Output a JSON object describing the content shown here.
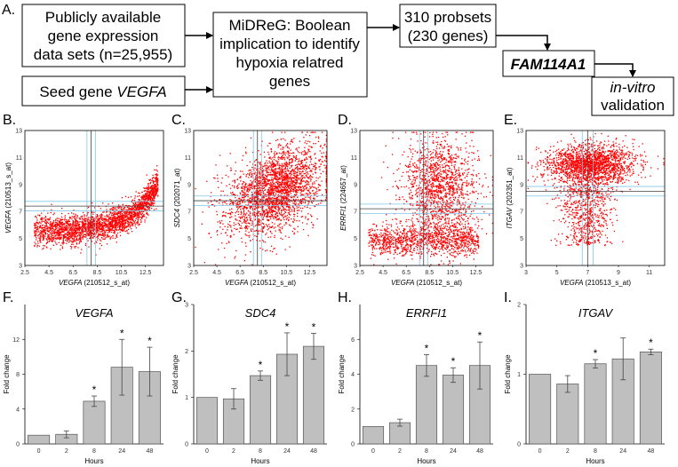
{
  "flowchart": {
    "panel_label": "A.",
    "box_dataset": [
      "Publicly available",
      "gene expression",
      "data sets (n=25,955)"
    ],
    "box_seed_prefix": "Seed gene ",
    "box_seed_gene": "VEGFA",
    "box_midreg": [
      "MiDReG: Boolean",
      "implication to identify",
      "hypoxia relatred",
      "genes"
    ],
    "box_probesets": [
      "310 probsets",
      "(230 genes)"
    ],
    "box_gene": "FAM114A1",
    "box_validation_line1": "in-vitro",
    "box_validation_line2": "validation"
  },
  "colors": {
    "scatter_point": "#ff0000",
    "bar_fill": "#bfbfbf",
    "threshold_line": "#7fc8e8",
    "cross_line": "#404040"
  },
  "chart_data": [
    {
      "type": "scatter",
      "panel_label": "B.",
      "xlabel_gene": "VEGFA",
      "xlabel_probe": "(210512_s_at)",
      "ylabel_gene": "VEGFA",
      "ylabel_probe": "(210513_s_at)",
      "xlim": [
        2.5,
        14
      ],
      "ylim": [
        3,
        13
      ],
      "xticks": [
        "2.5",
        "4.5",
        "6.5",
        "8.5",
        "10.5",
        "12.5"
      ],
      "yticks": [
        "3",
        "5",
        "7",
        "9",
        "11",
        "13"
      ],
      "threshold_x": 8,
      "threshold_y": 7.4,
      "point_cloud": "curved-exponential"
    },
    {
      "type": "scatter",
      "panel_label": "C.",
      "xlabel_gene": "VEGFA",
      "xlabel_probe": "(210512_s_at)",
      "ylabel_gene": "SDC4",
      "ylabel_probe": "(202071_at)",
      "xlim": [
        2.5,
        14
      ],
      "ylim": [
        3,
        13
      ],
      "xticks": [
        "2.5",
        "4.5",
        "6.5",
        "8.5",
        "10.5",
        "12.5"
      ],
      "yticks": [
        "3",
        "5",
        "7",
        "9",
        "11",
        "13"
      ],
      "threshold_x": 8,
      "threshold_y": 7.8,
      "point_cloud": "correlated-broad"
    },
    {
      "type": "scatter",
      "panel_label": "D.",
      "xlabel_gene": "VEGFA",
      "xlabel_probe": "(210512_s_at)",
      "ylabel_gene": "ERRFI1",
      "ylabel_probe": "(224657_at)",
      "xlim": [
        2.5,
        14
      ],
      "ylim": [
        3,
        13
      ],
      "xticks": [
        "2.5",
        "4.5",
        "6.5",
        "8.5",
        "10.5",
        "12.5"
      ],
      "yticks": [
        "3",
        "5",
        "7",
        "9",
        "11",
        "13"
      ],
      "threshold_x": 8,
      "threshold_y": 7.2,
      "point_cloud": "l-shaped"
    },
    {
      "type": "scatter",
      "panel_label": "E.",
      "xlabel_gene": "VEGFA",
      "xlabel_probe": "(210513_s_at)",
      "ylabel_gene": "ITGAV",
      "ylabel_probe": "(202351_at)",
      "xlim": [
        3,
        12
      ],
      "ylim": [
        3,
        13
      ],
      "xticks": [
        "3",
        "5",
        "7",
        "9",
        "11"
      ],
      "yticks": [
        "3",
        "5",
        "7",
        "9",
        "11",
        "13"
      ],
      "threshold_x": 7,
      "threshold_y": 8.5,
      "point_cloud": "plateau"
    },
    {
      "type": "bar",
      "panel_label": "F.",
      "title": "VEGFA",
      "xlabel": "Hours",
      "ylabel": "Fold change",
      "categories": [
        "0",
        "2",
        "8",
        "24",
        "48"
      ],
      "values": [
        1.0,
        1.1,
        4.9,
        8.8,
        8.3
      ],
      "errors": [
        0.0,
        0.4,
        0.6,
        3.2,
        2.8
      ],
      "significant": [
        false,
        false,
        true,
        true,
        true
      ],
      "star": "*",
      "ylim": [
        0,
        16
      ],
      "yticks": [
        "0",
        "4",
        "8",
        "12"
      ],
      "ytick_values": [
        0,
        4,
        8,
        12
      ]
    },
    {
      "type": "bar",
      "panel_label": "G.",
      "title": "SDC4",
      "xlabel": "Hours",
      "ylabel": "Fold change",
      "categories": [
        "0",
        "2",
        "8",
        "24",
        "48"
      ],
      "values": [
        1.0,
        0.97,
        1.47,
        1.93,
        2.1
      ],
      "errors": [
        0.0,
        0.22,
        0.1,
        0.46,
        0.28
      ],
      "significant": [
        false,
        false,
        true,
        true,
        true
      ],
      "star": "*",
      "ylim": [
        0,
        3
      ],
      "yticks": [
        "0",
        "1",
        "2",
        "3"
      ],
      "ytick_values": [
        0,
        1,
        2,
        3
      ]
    },
    {
      "type": "bar",
      "panel_label": "H.",
      "title": "ERRFI1",
      "xlabel": "Hours",
      "ylabel": "Fold change",
      "categories": [
        "0",
        "2",
        "8",
        "24",
        "48"
      ],
      "values": [
        1.0,
        1.22,
        4.5,
        3.95,
        4.5
      ],
      "errors": [
        0.0,
        0.2,
        0.62,
        0.42,
        1.35
      ],
      "significant": [
        false,
        false,
        true,
        true,
        true
      ],
      "star": "*",
      "ylim": [
        0,
        8
      ],
      "yticks": [
        "0",
        "2",
        "4",
        "6"
      ],
      "ytick_values": [
        0,
        2,
        4,
        6
      ]
    },
    {
      "type": "bar",
      "panel_label": "I.",
      "title": "ITGAV",
      "xlabel": "Hours",
      "ylabel": "Fold change",
      "categories": [
        "0",
        "2",
        "8",
        "24",
        "48"
      ],
      "values": [
        1.0,
        0.86,
        1.15,
        1.22,
        1.32
      ],
      "errors": [
        0.0,
        0.12,
        0.06,
        0.3,
        0.04
      ],
      "significant": [
        false,
        false,
        true,
        false,
        true
      ],
      "star": "*",
      "ylim": [
        0,
        2
      ],
      "yticks": [
        "0",
        "1",
        "2"
      ],
      "ytick_values": [
        0,
        1,
        2
      ]
    }
  ]
}
